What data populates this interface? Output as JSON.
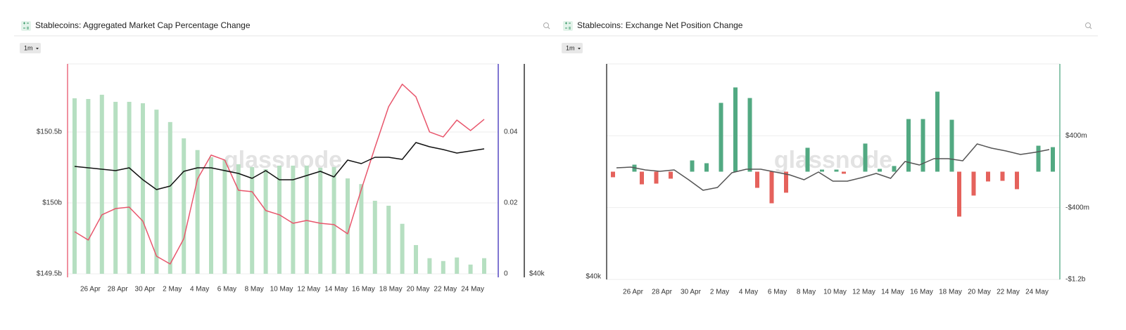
{
  "chart_data": [
    {
      "type": "combo",
      "title": "Stablecoins: Aggregated Market Cap Percentage Change",
      "button": "1m",
      "watermark": "glassnode",
      "categories": [
        null,
        "26 Apr",
        null,
        "28 Apr",
        null,
        "30 Apr",
        null,
        "2 May",
        null,
        "4 May",
        null,
        "6 May",
        null,
        "8 May",
        null,
        "10 May",
        null,
        "12 May",
        null,
        "14 May",
        null,
        "16 May",
        null,
        "18 May",
        null,
        "20 May",
        null,
        "22 May",
        null,
        "24 May",
        null
      ],
      "ylim": [
        149.475,
        150.98
      ],
      "yticks": [
        {
          "value": 149.5,
          "label": "$149.5b"
        },
        {
          "value": 150,
          "label": "$150b"
        },
        {
          "value": 150.5,
          "label": "$150.5b"
        }
      ],
      "y2lim": [
        -0.001,
        0.0592
      ],
      "y2ticks": [
        0,
        0.02,
        0.04
      ],
      "y3lim": [
        39750,
        54950
      ],
      "y3ticks": [
        {
          "value": 40000,
          "label": "$40k"
        }
      ],
      "grid": true,
      "grid_axis": "y",
      "axis_colors": {
        "y": "#e8566c",
        "y2": "#3b2db8",
        "y3": "#111111"
      },
      "series": [
        {
          "kind": "bar",
          "axis": "y2",
          "color": "#b6dfc1",
          "values": [
            0.0495,
            0.0493,
            0.0505,
            0.0485,
            0.0485,
            0.0481,
            0.0463,
            0.0428,
            0.0382,
            0.0349,
            0.0329,
            0.0321,
            0.0309,
            0.0301,
            0.0295,
            0.0305,
            0.0305,
            0.0305,
            0.0299,
            0.0301,
            0.0269,
            0.0253,
            0.0206,
            0.0192,
            0.0141,
            0.0081,
            0.0044,
            0.0036,
            0.0046,
            0.0026,
            0.0044
          ]
        },
        {
          "kind": "line",
          "axis": "y",
          "color": "#e8566c",
          "values": [
            149.797,
            149.738,
            149.916,
            149.96,
            149.97,
            149.871,
            149.624,
            149.569,
            149.748,
            150.168,
            150.337,
            150.302,
            150.089,
            150.079,
            149.946,
            149.916,
            149.856,
            149.876,
            149.856,
            149.847,
            149.782,
            150.094,
            150.391,
            150.678,
            150.837,
            150.748,
            150.5,
            150.465,
            150.584,
            150.51,
            150.589
          ]
        },
        {
          "kind": "line",
          "axis": "y3",
          "color": "#111111",
          "values": [
            47650,
            47550,
            47450,
            47350,
            47550,
            46700,
            46000,
            46250,
            47300,
            47550,
            47550,
            47350,
            47150,
            46800,
            47350,
            46700,
            46700,
            47000,
            47300,
            46900,
            48100,
            47850,
            48300,
            48300,
            48150,
            49350,
            49050,
            48850,
            48600,
            48750,
            48900
          ]
        }
      ]
    },
    {
      "type": "combo",
      "title": "Stablecoins: Exchange Net Position Change",
      "button": "1m",
      "watermark": "glassnode",
      "categories": [
        null,
        "26 Apr",
        null,
        "28 Apr",
        null,
        "30 Apr",
        null,
        "2 May",
        null,
        "4 May",
        null,
        "6 May",
        null,
        "8 May",
        null,
        "10 May",
        null,
        "12 May",
        null,
        "14 May",
        null,
        "16 May",
        null,
        "18 May",
        null,
        "20 May",
        null,
        "22 May",
        null,
        "24 May",
        null
      ],
      "ylim": [
        39800,
        55150
      ],
      "yticks": [
        {
          "value": 40000,
          "label": "$40k"
        }
      ],
      "y2lim": [
        -1200,
        1200
      ],
      "y2ticks": [
        {
          "value": -1200,
          "label": "-$1.2b"
        },
        {
          "value": -400,
          "label": "-$400m"
        },
        {
          "value": 400,
          "label": "$400m"
        }
      ],
      "grid": true,
      "grid_axis": "y2",
      "axis_colors": {
        "y": "#222222",
        "y2": "#52a982"
      },
      "series": [
        {
          "kind": "bar",
          "axis": "y2",
          "color": "#52a982",
          "negative_color": "#e5625c",
          "values": [
            -62,
            78,
            -141,
            -133,
            -78,
            125,
            94,
            766,
            938,
            820,
            -180,
            -352,
            -234,
            266,
            23,
            23,
            -23,
            313,
            31,
            63,
            586,
            586,
            891,
            578,
            -500,
            -266,
            -109,
            -102,
            -195,
            289,
            273
          ]
        },
        {
          "kind": "line",
          "axis": "y",
          "color": "#555555",
          "values": [
            47750,
            47800,
            47600,
            47500,
            47600,
            46900,
            46150,
            46350,
            47400,
            47650,
            47650,
            47450,
            47250,
            46900,
            47450,
            46800,
            46800,
            47050,
            47350,
            47000,
            48200,
            47950,
            48400,
            48400,
            48250,
            49450,
            49150,
            48950,
            48700,
            48850,
            49050
          ]
        }
      ]
    }
  ]
}
